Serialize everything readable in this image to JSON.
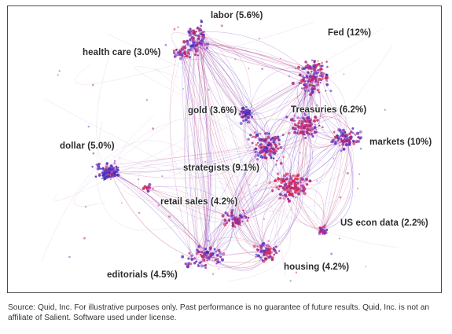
{
  "colors": {
    "hot": "#d8244a",
    "warm": "#b0287e",
    "cool": "#6a35c8",
    "deep": "#3b2fb8",
    "edge": "#b3246a",
    "frame": "#4a4a4a"
  },
  "clusters": [
    {
      "id": "labor",
      "label": "labor (5.6%)"
    },
    {
      "id": "fed",
      "label": "Fed (12%)"
    },
    {
      "id": "health-care",
      "label": "health care (3.0%)"
    },
    {
      "id": "gold",
      "label": "gold (3.6%)"
    },
    {
      "id": "treasuries",
      "label": "Treasuries (6.2%)"
    },
    {
      "id": "markets",
      "label": "markets (10%)"
    },
    {
      "id": "dollar",
      "label": "dollar (5.0%)"
    },
    {
      "id": "strategists",
      "label": "strategists (9.1%)"
    },
    {
      "id": "retail-sales",
      "label": "retail sales (4.2%)"
    },
    {
      "id": "us-econ-data",
      "label": "US econ data (2.2%)"
    },
    {
      "id": "editorials",
      "label": "editorials (4.5%)"
    },
    {
      "id": "housing",
      "label": "housing (4.2%)"
    }
  ],
  "footnote": "Source: Quid, Inc. For illustrative purposes only. Past performance is no guarantee of future results. Quid, Inc. is not an affiliate of Salient. Software used under license."
}
